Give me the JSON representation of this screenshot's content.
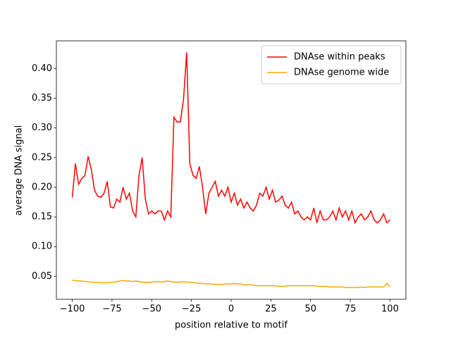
{
  "chart_data": {
    "type": "line",
    "xlabel": "position relative to motif",
    "ylabel": "average DNA signal",
    "x": [
      -100,
      -98,
      -96,
      -94,
      -92,
      -90,
      -88,
      -86,
      -84,
      -82,
      -80,
      -78,
      -76,
      -74,
      -72,
      -70,
      -68,
      -66,
      -64,
      -62,
      -60,
      -58,
      -56,
      -54,
      -52,
      -50,
      -48,
      -46,
      -44,
      -42,
      -40,
      -38,
      -36,
      -34,
      -32,
      -30,
      -28,
      -26,
      -24,
      -22,
      -20,
      -18,
      -16,
      -14,
      -12,
      -10,
      -8,
      -6,
      -4,
      -2,
      0,
      2,
      4,
      6,
      8,
      10,
      12,
      14,
      16,
      18,
      20,
      22,
      24,
      26,
      28,
      30,
      32,
      34,
      36,
      38,
      40,
      42,
      44,
      46,
      48,
      50,
      52,
      54,
      56,
      58,
      60,
      62,
      64,
      66,
      68,
      70,
      72,
      74,
      76,
      78,
      80,
      82,
      84,
      86,
      88,
      90,
      92,
      94,
      96,
      98,
      100
    ],
    "series": [
      {
        "name": "DNAse within peaks",
        "color": "#ff0000",
        "values": [
          0.183,
          0.24,
          0.205,
          0.215,
          0.22,
          0.252,
          0.23,
          0.195,
          0.185,
          0.183,
          0.19,
          0.21,
          0.167,
          0.165,
          0.18,
          0.175,
          0.2,
          0.18,
          0.19,
          0.16,
          0.15,
          0.22,
          0.25,
          0.18,
          0.155,
          0.16,
          0.155,
          0.16,
          0.16,
          0.145,
          0.16,
          0.15,
          0.318,
          0.31,
          0.31,
          0.347,
          0.427,
          0.24,
          0.22,
          0.215,
          0.235,
          0.2,
          0.155,
          0.19,
          0.2,
          0.21,
          0.185,
          0.195,
          0.185,
          0.2,
          0.175,
          0.19,
          0.17,
          0.18,
          0.165,
          0.175,
          0.165,
          0.16,
          0.17,
          0.19,
          0.185,
          0.2,
          0.18,
          0.195,
          0.175,
          0.178,
          0.185,
          0.17,
          0.165,
          0.175,
          0.155,
          0.16,
          0.15,
          0.145,
          0.15,
          0.145,
          0.165,
          0.14,
          0.16,
          0.145,
          0.145,
          0.15,
          0.16,
          0.145,
          0.165,
          0.15,
          0.16,
          0.145,
          0.16,
          0.14,
          0.15,
          0.155,
          0.145,
          0.15,
          0.16,
          0.145,
          0.14,
          0.145,
          0.155,
          0.14,
          0.145
        ]
      },
      {
        "name": "DNAse genome wide",
        "color": "#ffa500",
        "values": [
          0.043,
          0.043,
          0.042,
          0.042,
          0.041,
          0.041,
          0.04,
          0.04,
          0.04,
          0.039,
          0.039,
          0.039,
          0.04,
          0.04,
          0.041,
          0.042,
          0.043,
          0.042,
          0.042,
          0.041,
          0.042,
          0.041,
          0.04,
          0.039,
          0.04,
          0.04,
          0.041,
          0.041,
          0.04,
          0.041,
          0.042,
          0.041,
          0.04,
          0.04,
          0.04,
          0.041,
          0.04,
          0.04,
          0.039,
          0.039,
          0.038,
          0.038,
          0.037,
          0.037,
          0.037,
          0.036,
          0.036,
          0.036,
          0.037,
          0.037,
          0.037,
          0.038,
          0.037,
          0.037,
          0.036,
          0.035,
          0.036,
          0.035,
          0.034,
          0.034,
          0.034,
          0.034,
          0.034,
          0.034,
          0.034,
          0.033,
          0.033,
          0.033,
          0.034,
          0.034,
          0.034,
          0.034,
          0.034,
          0.034,
          0.034,
          0.034,
          0.034,
          0.033,
          0.033,
          0.033,
          0.033,
          0.032,
          0.032,
          0.032,
          0.032,
          0.032,
          0.031,
          0.031,
          0.031,
          0.031,
          0.031,
          0.032,
          0.031,
          0.032,
          0.032,
          0.032,
          0.032,
          0.032,
          0.032,
          0.038,
          0.032
        ]
      }
    ],
    "xlim": [
      -110,
      110
    ],
    "ylim": [
      0.0112,
      0.4468
    ],
    "xticks": [
      {
        "value": -100,
        "label": "−100"
      },
      {
        "value": -75,
        "label": "−75"
      },
      {
        "value": -50,
        "label": "−50"
      },
      {
        "value": -25,
        "label": "−25"
      },
      0,
      25,
      50,
      75,
      100
    ],
    "yticks": [
      0.05,
      {
        "value": 0.1,
        "label": "0.10"
      },
      0.15,
      {
        "value": 0.2,
        "label": "0.20"
      },
      0.25,
      {
        "value": 0.3,
        "label": "0.30"
      },
      0.35,
      {
        "value": 0.4,
        "label": "0.40"
      }
    ],
    "grid": false,
    "legend": "upper right"
  }
}
